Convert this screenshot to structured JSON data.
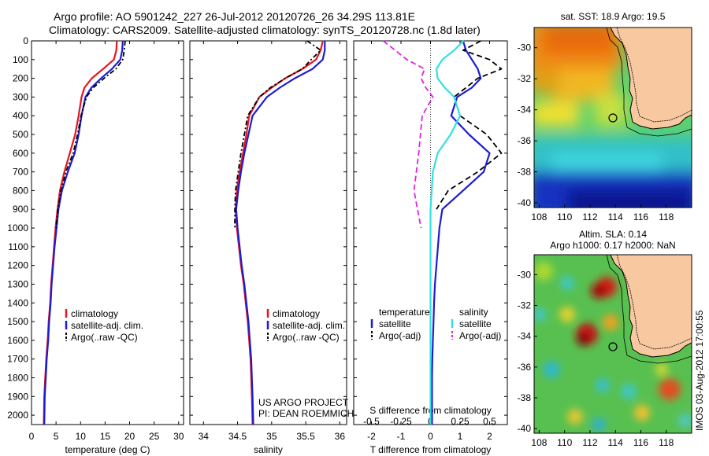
{
  "header": {
    "line1": "Argo profile: AO 5901242_227 26-Jul-2012 20120726_26 34.29S 113.81E",
    "line2": "Climatology: CARS2009. Satellite-adjusted climatology: synTS_20120728.nc (1.8d later)"
  },
  "credit": {
    "line1": "US ARGO PROJECT",
    "line2": "PI: DEAN ROEMMICH"
  },
  "stamp": "IMOS 03-Aug-2012 17:00:55",
  "colors": {
    "red": "#e8141e",
    "blue": "#1c1cd4",
    "black": "#000000",
    "cyan": "#33e0e0",
    "magenta": "#e020e0",
    "land": "#f8c8a0"
  },
  "chart_data": [
    {
      "type": "line",
      "xlabel": "temperature (deg C)",
      "ylabel": "",
      "xlim": [
        0,
        31
      ],
      "ylim": [
        0,
        2050
      ],
      "xticks": [
        0,
        5,
        10,
        15,
        20,
        25,
        30
      ],
      "yticks": [
        0,
        100,
        200,
        300,
        400,
        500,
        600,
        700,
        800,
        900,
        1000,
        1100,
        1200,
        1300,
        1400,
        1500,
        1600,
        1700,
        1800,
        1900,
        2000
      ],
      "legend": "lower-left",
      "series": [
        {
          "name": "climatology",
          "color": "red",
          "style": "solid",
          "x": [
            17.4,
            17.3,
            16.8,
            14.6,
            12.3,
            10.8,
            10.2,
            9.6,
            8.9,
            7.8,
            6.7,
            5.8,
            5.3,
            4.9,
            4.6,
            4.3,
            4.0,
            3.8,
            3.5,
            3.3,
            3.0,
            2.8,
            2.6,
            2.5
          ],
          "y": [
            0,
            50,
            100,
            150,
            200,
            250,
            300,
            400,
            500,
            600,
            700,
            800,
            900,
            1000,
            1100,
            1200,
            1300,
            1400,
            1500,
            1600,
            1700,
            1800,
            1900,
            2050
          ]
        },
        {
          "name": "satellite-adj. clim.",
          "color": "blue",
          "style": "solid",
          "x": [
            18.6,
            18.5,
            18.1,
            16.4,
            14.2,
            12.2,
            11.0,
            10.2,
            9.6,
            8.8,
            7.4,
            6.2,
            5.5,
            5.1,
            4.7,
            4.4,
            4.1,
            3.9,
            3.6,
            3.4,
            3.1,
            2.9,
            2.7,
            2.6
          ],
          "y": [
            0,
            50,
            100,
            150,
            200,
            250,
            300,
            400,
            500,
            600,
            700,
            800,
            900,
            1000,
            1100,
            1200,
            1300,
            1400,
            1500,
            1600,
            1700,
            1800,
            1900,
            2050
          ]
        },
        {
          "name": "Argo(..raw -QC)",
          "color": "black",
          "style": "dashdot",
          "x": [
            19.1,
            18.9,
            18.6,
            17.2,
            14.8,
            12.6,
            11.2,
            10.1,
            9.4,
            8.5,
            7.0,
            6.0,
            5.4,
            5.0
          ],
          "y": [
            0,
            50,
            100,
            150,
            200,
            250,
            300,
            400,
            500,
            600,
            700,
            800,
            900,
            1000
          ]
        }
      ]
    },
    {
      "type": "line",
      "xlabel": "salinity",
      "ylabel": "",
      "xlim": [
        33.8,
        36.1
      ],
      "ylim": [
        0,
        2050
      ],
      "xticks": [
        34,
        34.5,
        35,
        35.5,
        36
      ],
      "legend": "lower-right",
      "series": [
        {
          "name": "climatology",
          "color": "red",
          "style": "solid",
          "x": [
            35.75,
            35.72,
            35.65,
            35.45,
            35.2,
            35.0,
            34.82,
            34.67,
            34.63,
            34.58,
            34.53,
            34.49,
            34.47,
            34.49,
            34.52,
            34.55,
            34.59,
            34.62,
            34.65,
            34.67,
            34.69,
            34.7,
            34.71,
            34.72
          ],
          "y": [
            0,
            50,
            100,
            150,
            200,
            250,
            300,
            400,
            500,
            600,
            700,
            800,
            900,
            1000,
            1100,
            1200,
            1300,
            1400,
            1500,
            1600,
            1700,
            1800,
            1900,
            2050
          ]
        },
        {
          "name": "satellite-adj. clim.",
          "color": "blue",
          "style": "solid",
          "x": [
            35.78,
            35.78,
            35.75,
            35.6,
            35.34,
            35.12,
            34.93,
            34.72,
            34.66,
            34.6,
            34.55,
            34.51,
            34.48,
            34.5,
            34.53,
            34.56,
            34.6,
            34.63,
            34.66,
            34.68,
            34.7,
            34.71,
            34.72,
            34.73
          ],
          "y": [
            0,
            50,
            100,
            150,
            200,
            250,
            300,
            400,
            500,
            600,
            700,
            800,
            900,
            1000,
            1100,
            1200,
            1300,
            1400,
            1500,
            1600,
            1700,
            1800,
            1900,
            2050
          ]
        },
        {
          "name": "Argo(..raw -QC)",
          "color": "black",
          "style": "dashdot",
          "x": [
            35.52,
            35.72,
            35.58,
            35.45,
            35.2,
            34.98,
            34.82,
            34.65,
            34.6,
            34.55,
            34.51,
            34.47,
            34.46,
            34.46
          ],
          "y": [
            0,
            50,
            100,
            150,
            200,
            250,
            300,
            400,
            500,
            600,
            700,
            800,
            900,
            1000
          ]
        }
      ]
    },
    {
      "type": "line",
      "xlabel": "T difference from climatology",
      "x2label": "S difference from climatology",
      "ylabel": "",
      "xlim": [
        -2.6,
        2.6
      ],
      "ylim": [
        0,
        2050
      ],
      "xticks": [
        -2,
        -1,
        0,
        1,
        2
      ],
      "x2ticks": [
        "-0.5",
        "-0.25",
        "0",
        "0.25",
        "0.5"
      ],
      "legend": "lower-center",
      "legend_temperature_title": "temperature",
      "legend_salinity_title": "salinity",
      "series": [
        {
          "name": "satellite",
          "group": "temperature",
          "color": "blue",
          "style": "solid",
          "x": [
            1.1,
            1.2,
            1.4,
            1.6,
            1.7,
            1.4,
            0.9,
            0.7,
            1.3,
            2.0,
            1.8,
            1.1,
            0.4,
            0.3,
            0.25,
            0.2,
            0.15,
            0.12,
            0.1,
            0.08,
            0.06,
            0.05,
            0.05,
            0.05
          ],
          "y": [
            0,
            50,
            100,
            150,
            200,
            250,
            300,
            400,
            500,
            600,
            700,
            800,
            900,
            1000,
            1100,
            1200,
            1300,
            1400,
            1500,
            1600,
            1700,
            1800,
            1900,
            2050
          ]
        },
        {
          "name": "Argo(-adj)",
          "group": "temperature",
          "color": "black",
          "style": "dashed",
          "x": [
            1.7,
            1.1,
            2.0,
            2.4,
            1.6,
            1.2,
            0.8,
            1.0,
            1.9,
            2.4,
            1.6,
            0.6,
            0.2
          ],
          "y": [
            0,
            50,
            100,
            150,
            200,
            250,
            300,
            400,
            500,
            600,
            700,
            800,
            900
          ]
        },
        {
          "name": "satellite",
          "group": "salinity",
          "color": "cyan",
          "style": "solid",
          "x": [
            0.28,
            0.2,
            0.1,
            0.05,
            0.06,
            0.12,
            0.2,
            0.25,
            0.17,
            0.06,
            0.02,
            0.01,
            0.0,
            0.0,
            0.0,
            0.0,
            0.0,
            0.0,
            0.0,
            0.0,
            0.0,
            0.0,
            0.0,
            0.0
          ],
          "y": [
            0,
            50,
            100,
            150,
            200,
            250,
            300,
            400,
            500,
            600,
            700,
            800,
            900,
            1000,
            1100,
            1200,
            1300,
            1400,
            1500,
            1600,
            1700,
            1800,
            1900,
            2050
          ]
        },
        {
          "name": "Argo(-adj)",
          "group": "salinity",
          "color": "magenta",
          "style": "dashed",
          "x": [
            -0.4,
            -0.3,
            -0.2,
            -0.05,
            -0.08,
            -0.04,
            0.02,
            -0.07,
            -0.1,
            -0.14,
            -0.08
          ],
          "y": [
            0,
            50,
            100,
            150,
            200,
            250,
            300,
            400,
            600,
            800,
            1000
          ]
        }
      ]
    },
    {
      "type": "heatmap",
      "title": "sat. SST: 18.9 Argo: 19.5",
      "xlim": [
        107.6,
        120
      ],
      "ylim": [
        -40.3,
        -28.7
      ],
      "xticks": [
        108,
        110,
        112,
        114,
        116,
        118
      ],
      "yticks": [
        -30,
        -32,
        -34,
        -36,
        -38,
        -40
      ],
      "argo_position": [
        113.81,
        -34.29
      ]
    },
    {
      "type": "heatmap",
      "title_line1": "Altim. SLA: 0.14",
      "title_line2": "Argo h1000: 0.17 h2000: NaN",
      "xlim": [
        107.6,
        120
      ],
      "ylim": [
        -40.3,
        -28.7
      ],
      "xticks": [
        108,
        110,
        112,
        114,
        116,
        118
      ],
      "yticks": [
        -30,
        -32,
        -34,
        -36,
        -38,
        -40
      ],
      "argo_position": [
        113.81,
        -34.29
      ]
    }
  ]
}
